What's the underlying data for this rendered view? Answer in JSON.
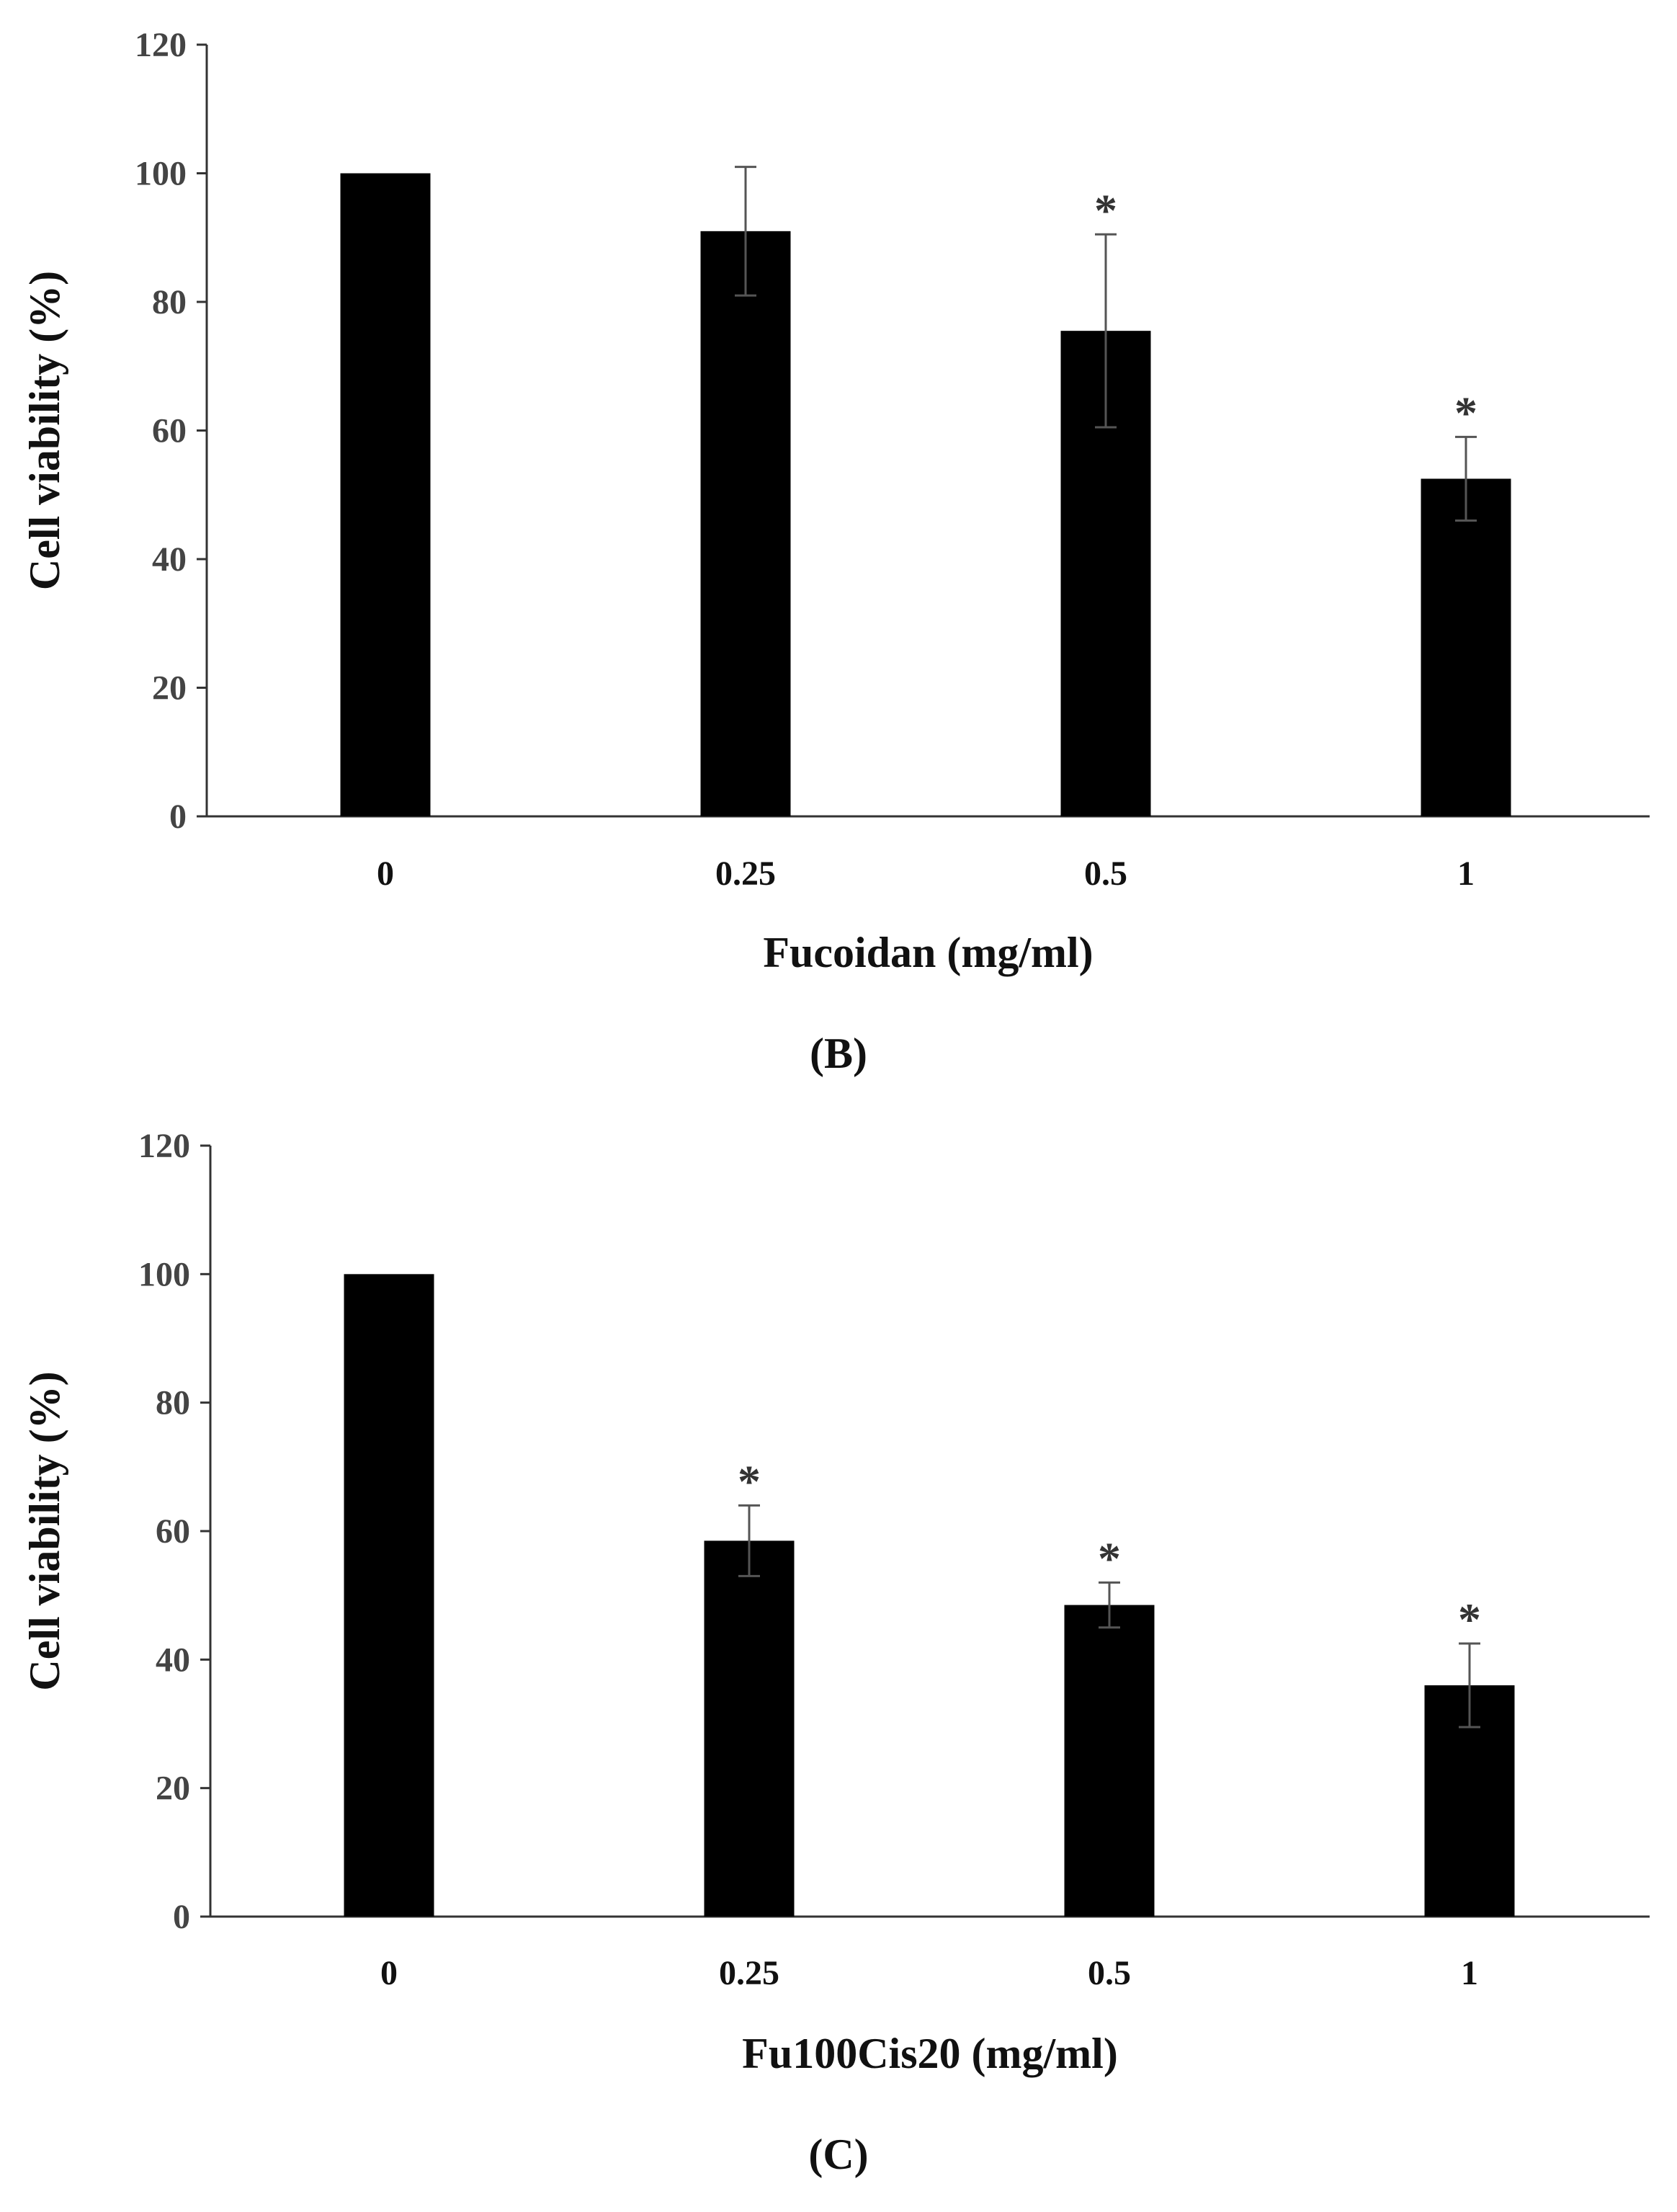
{
  "chart_data": [
    {
      "type": "bar",
      "panel_label": "(B)",
      "title": "",
      "xlabel": "Fucoidan (mg/ml)",
      "ylabel": "Cell viability (%)",
      "categories": [
        "0",
        "0.25",
        "0.5",
        "1"
      ],
      "values": [
        100,
        91,
        75.5,
        52.5
      ],
      "errors": [
        0,
        10,
        15,
        6.5
      ],
      "significance": [
        "",
        "",
        "*",
        "*"
      ],
      "ylim": [
        0,
        120
      ],
      "yticks": [
        "0",
        "20",
        "40",
        "60",
        "80",
        "100",
        "120"
      ],
      "grid": false,
      "colors": {
        "bar": "#000000",
        "error_bar": "#555555",
        "axis": "#333333"
      }
    },
    {
      "type": "bar",
      "panel_label": "(C)",
      "title": "",
      "xlabel": "Fu100Cis20 (mg/ml)",
      "ylabel": "Cell viability (%)",
      "categories": [
        "0",
        "0.25",
        "0.5",
        "1"
      ],
      "values": [
        100,
        58.5,
        48.5,
        36
      ],
      "errors": [
        0,
        5.5,
        3.5,
        6.5
      ],
      "significance": [
        "",
        "*",
        "*",
        "*"
      ],
      "ylim": [
        0,
        120
      ],
      "yticks": [
        "0",
        "20",
        "40",
        "60",
        "80",
        "100",
        "120"
      ],
      "grid": false,
      "colors": {
        "bar": "#000000",
        "error_bar": "#555555",
        "axis": "#333333"
      }
    }
  ]
}
